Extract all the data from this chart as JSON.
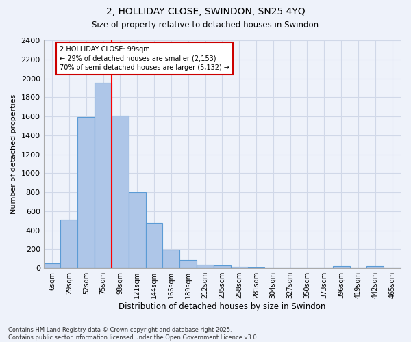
{
  "title_line1": "2, HOLLIDAY CLOSE, SWINDON, SN25 4YQ",
  "title_line2": "Size of property relative to detached houses in Swindon",
  "xlabel": "Distribution of detached houses by size in Swindon",
  "ylabel": "Number of detached properties",
  "footer": "Contains HM Land Registry data © Crown copyright and database right 2025.\nContains public sector information licensed under the Open Government Licence v3.0.",
  "bar_labels": [
    "6sqm",
    "29sqm",
    "52sqm",
    "75sqm",
    "98sqm",
    "121sqm",
    "144sqm",
    "166sqm",
    "189sqm",
    "212sqm",
    "235sqm",
    "258sqm",
    "281sqm",
    "304sqm",
    "327sqm",
    "350sqm",
    "373sqm",
    "396sqm",
    "419sqm",
    "442sqm",
    "465sqm"
  ],
  "bar_values": [
    55,
    510,
    1590,
    1950,
    1610,
    800,
    475,
    195,
    90,
    40,
    30,
    15,
    10,
    0,
    0,
    0,
    0,
    20,
    0,
    25,
    0
  ],
  "bar_color": "#aec6e8",
  "bar_edge_color": "#5b9bd5",
  "grid_color": "#d0d8e8",
  "background_color": "#eef2fa",
  "red_line_index": 4,
  "annotation_text": "2 HOLLIDAY CLOSE: 99sqm\n← 29% of detached houses are smaller (2,153)\n70% of semi-detached houses are larger (5,132) →",
  "annotation_box_color": "#ffffff",
  "annotation_box_edge_color": "#cc0000",
  "ylim": [
    0,
    2400
  ],
  "yticks": [
    0,
    200,
    400,
    600,
    800,
    1000,
    1200,
    1400,
    1600,
    1800,
    2000,
    2200,
    2400
  ]
}
